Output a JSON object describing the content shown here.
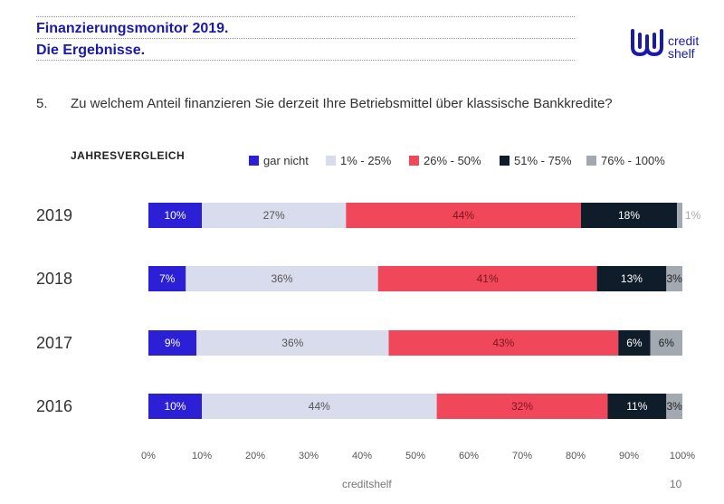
{
  "header": {
    "title_line1": "Finanzierungsmonitor 2019.",
    "title_line2": "Die Ergebnisse.",
    "logo_text_line1": "credit",
    "logo_text_line2": "shelf"
  },
  "question": {
    "number": "5.",
    "text": "Zu welchem Anteil finanzieren Sie derzeit Ihre Betriebsmittel über klassische Bankkredite?"
  },
  "footer": {
    "brand": "creditshelf",
    "page": "10"
  },
  "chart_data": {
    "type": "bar",
    "orientation": "horizontal",
    "stacked": true,
    "title": "JAHRESVERGLEICH",
    "categories": [
      "2019",
      "2018",
      "2017",
      "2016"
    ],
    "series": [
      {
        "name": "gar nicht",
        "color": "#2b20d6",
        "label_color": "#ffffff",
        "values": [
          10,
          7,
          9,
          10
        ],
        "labels": [
          "10%",
          "7%",
          "9%",
          "10%"
        ]
      },
      {
        "name": "1% - 25%",
        "color": "#d9dcec",
        "label_color": "#555555",
        "values": [
          27,
          36,
          36,
          44
        ],
        "labels": [
          "27%",
          "36%",
          "36%",
          "44%"
        ]
      },
      {
        "name": "26% - 50%",
        "color": "#f0485a",
        "label_color": "#7a1520",
        "values": [
          44,
          41,
          43,
          32
        ],
        "labels": [
          "44%",
          "41%",
          "43%",
          "32%"
        ]
      },
      {
        "name": "51% - 75%",
        "color": "#0f1d2b",
        "label_color": "#ffffff",
        "values": [
          18,
          13,
          6,
          11
        ],
        "labels": [
          "18%",
          "13%",
          "6%",
          "11%"
        ]
      },
      {
        "name": "76% - 100%",
        "color": "#a3a9b1",
        "label_color": "#222222",
        "values": [
          1,
          3,
          6,
          3
        ],
        "labels": [
          "1%",
          "3%",
          "6%",
          "3%"
        ]
      }
    ],
    "x_ticks": [
      "0%",
      "10%",
      "20%",
      "30%",
      "40%",
      "50%",
      "60%",
      "70%",
      "80%",
      "90%",
      "100%"
    ],
    "xlim": [
      0,
      100
    ],
    "legend_position": "top",
    "grid": false
  }
}
